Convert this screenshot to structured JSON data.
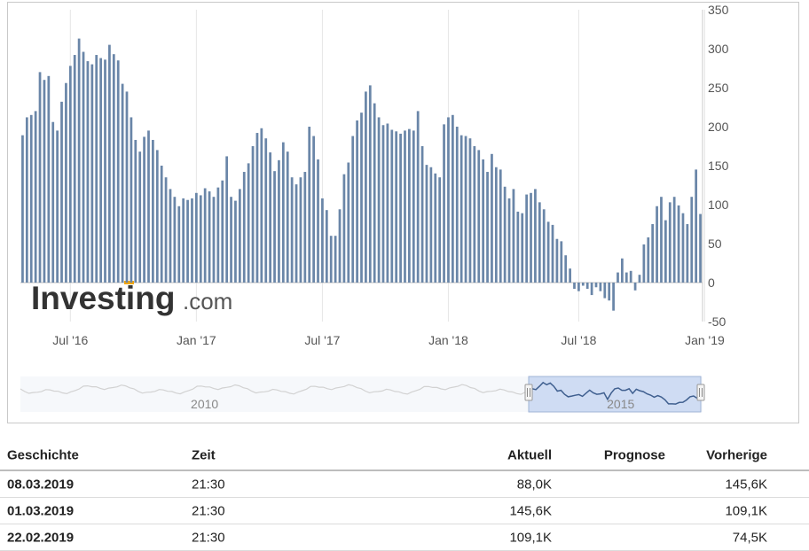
{
  "chart_data": {
    "type": "bar",
    "watermark": "Investing.com",
    "watermark_parts": {
      "brand": "Investing",
      "suffix": ".com"
    },
    "y_ticks": [
      "350",
      "300",
      "250",
      "200",
      "150",
      "100",
      "50",
      "0",
      "-50"
    ],
    "y_tick_values": [
      350,
      300,
      250,
      200,
      150,
      100,
      50,
      0,
      -50
    ],
    "ylim": [
      -50,
      350
    ],
    "x_ticks": [
      "Jul '16",
      "Jan '17",
      "Jul '17",
      "Jan '18",
      "Jul '18",
      "Jan '19"
    ],
    "x_tick_bar_index": [
      11,
      40,
      69,
      98,
      128,
      157
    ],
    "colors": {
      "bar": "#6a86a8",
      "nav_fill": "#cfdcf3",
      "nav_line": "#3f5f8f",
      "nav_bg_line": "#d2d2d2",
      "frame": "#c9c9c9"
    },
    "values": [
      189,
      212,
      215,
      220,
      270,
      260,
      265,
      206,
      195,
      232,
      256,
      278,
      292,
      313,
      296,
      284,
      280,
      292,
      288,
      286,
      305,
      293,
      285,
      255,
      245,
      212,
      183,
      168,
      187,
      195,
      183,
      170,
      150,
      135,
      120,
      110,
      98,
      108,
      106,
      108,
      115,
      112,
      121,
      117,
      110,
      122,
      131,
      162,
      110,
      105,
      120,
      142,
      153,
      175,
      192,
      198,
      185,
      167,
      143,
      157,
      180,
      168,
      135,
      126,
      135,
      142,
      200,
      188,
      158,
      108,
      93,
      60,
      60,
      94,
      139,
      154,
      188,
      208,
      218,
      245,
      253,
      230,
      212,
      202,
      204,
      196,
      194,
      191,
      195,
      197,
      195,
      220,
      175,
      151,
      148,
      140,
      135,
      203,
      212,
      215,
      200,
      189,
      188,
      185,
      175,
      170,
      158,
      142,
      165,
      148,
      145,
      123,
      108,
      120,
      91,
      89,
      113,
      115,
      120,
      103,
      94,
      78,
      74,
      56,
      53,
      35,
      18,
      -8,
      -11,
      -4,
      -8,
      -16,
      -6,
      -11,
      -20,
      -23,
      -36,
      13,
      31,
      13,
      15,
      -10,
      10,
      49,
      58,
      75,
      98,
      110,
      80,
      103,
      110,
      99,
      89,
      75,
      110,
      145,
      88
    ],
    "navigator": {
      "labels": [
        "2010",
        "2015"
      ],
      "label_fraction": [
        0.27,
        0.88
      ]
    }
  },
  "history": {
    "headers": {
      "date": "Geschichte",
      "time": "Zeit",
      "actual": "Aktuell",
      "forecast": "Prognose",
      "previous": "Vorherige"
    },
    "rows": [
      {
        "date": "08.03.2019",
        "time": "21:30",
        "actual": "88,0K",
        "forecast": "",
        "previous": "145,6K"
      },
      {
        "date": "01.03.2019",
        "time": "21:30",
        "actual": "145,6K",
        "forecast": "",
        "previous": "109,1K"
      },
      {
        "date": "22.02.2019",
        "time": "21:30",
        "actual": "109,1K",
        "forecast": "",
        "previous": "74,5K"
      }
    ]
  }
}
